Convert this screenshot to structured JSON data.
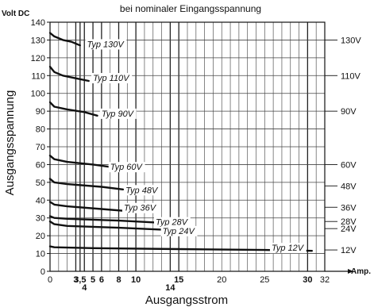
{
  "chart_data": {
    "type": "line",
    "title": "bei nominaler Eingangsspannung",
    "xlabel": "Ausgangsstrom",
    "ylabel": "Ausgangsspannung",
    "y_unit": "Volt DC",
    "x_unit": "Amp.",
    "xlim": [
      0,
      32
    ],
    "ylim": [
      0,
      140
    ],
    "grid": true,
    "x_ticks": [
      {
        "value": 0,
        "label": "0",
        "row": 1
      },
      {
        "value": 3,
        "label": "3",
        "row": 1
      },
      {
        "value": 3.5,
        "label": "3,5",
        "row": 1
      },
      {
        "value": 4,
        "label": "4",
        "row": 2
      },
      {
        "value": 5,
        "label": "5",
        "row": 1
      },
      {
        "value": 6,
        "label": "6",
        "row": 1
      },
      {
        "value": 8,
        "label": "8",
        "row": 1
      },
      {
        "value": 10,
        "label": "10",
        "row": 1
      },
      {
        "value": 14,
        "label": "14",
        "row": 2
      },
      {
        "value": 15,
        "label": "15",
        "row": 1
      },
      {
        "value": 20,
        "label": "20",
        "row": 1
      },
      {
        "value": 25,
        "label": "25",
        "row": 1
      },
      {
        "value": 30,
        "label": "30",
        "row": 1
      },
      {
        "value": 32,
        "label": "32",
        "row": 1
      }
    ],
    "x_bold_ticks": [
      3,
      3.5,
      4,
      5,
      6,
      8,
      10,
      14,
      15,
      30
    ],
    "y_ticks": [
      0,
      10,
      20,
      30,
      40,
      50,
      60,
      70,
      80,
      90,
      100,
      110,
      120,
      130,
      140
    ],
    "right_labels": [
      {
        "value": 130,
        "label": "130V"
      },
      {
        "value": 110,
        "label": "110V"
      },
      {
        "value": 90,
        "label": "90V"
      },
      {
        "value": 60,
        "label": "60V"
      },
      {
        "value": 48,
        "label": "48V"
      },
      {
        "value": 36,
        "label": "36V"
      },
      {
        "value": 28,
        "label": "28V"
      },
      {
        "value": 24,
        "label": "24V"
      },
      {
        "value": 12,
        "label": "12V"
      }
    ],
    "series": [
      {
        "name": "Typ 130V",
        "label_x": 4.3,
        "label_y": 126,
        "x": [
          0,
          0.5,
          1.5,
          2.5,
          3.5
        ],
        "y": [
          134,
          132,
          130,
          129,
          127
        ]
      },
      {
        "name": "Typ 110V",
        "label_x": 5.0,
        "label_y": 107,
        "x": [
          0,
          0.5,
          1.5,
          3,
          4.5
        ],
        "y": [
          115,
          112,
          110,
          108.5,
          107
        ]
      },
      {
        "name": "Typ 90V",
        "label_x": 6.0,
        "label_y": 87,
        "x": [
          0,
          0.5,
          2,
          4,
          5.5
        ],
        "y": [
          95,
          92.5,
          91,
          89.5,
          87.5
        ]
      },
      {
        "name": "Typ 60V",
        "label_x": 7.0,
        "label_y": 57,
        "x": [
          0,
          0.5,
          2,
          5,
          8
        ],
        "y": [
          65,
          63,
          61.5,
          60,
          58
        ]
      },
      {
        "name": "Typ 48V",
        "label_x": 8.8,
        "label_y": 44,
        "x": [
          0,
          0.5,
          2,
          6,
          8.5
        ],
        "y": [
          52,
          50,
          49,
          47.5,
          46
        ]
      },
      {
        "name": "Typ 36V",
        "label_x": 8.6,
        "label_y": 34,
        "x": [
          0,
          0.5,
          2,
          6,
          10
        ],
        "y": [
          39,
          37.5,
          36.5,
          35,
          33.5
        ]
      },
      {
        "name": "Typ 28V",
        "label_x": 12.3,
        "label_y": 26,
        "x": [
          0,
          0.5,
          2,
          8,
          14
        ],
        "y": [
          31,
          30,
          29.5,
          28.5,
          27
        ]
      },
      {
        "name": "Typ 24V",
        "label_x": 13.1,
        "label_y": 21,
        "x": [
          0,
          0.5,
          2,
          8,
          15
        ],
        "y": [
          28,
          26.5,
          25.5,
          24.5,
          23
        ]
      },
      {
        "name": "Typ 12V",
        "label_x": 25.8,
        "label_y": 11.5,
        "x": [
          0,
          0.5,
          5,
          15,
          25,
          30.5
        ],
        "y": [
          14,
          13.5,
          13,
          12.5,
          12,
          11.5
        ]
      }
    ]
  }
}
